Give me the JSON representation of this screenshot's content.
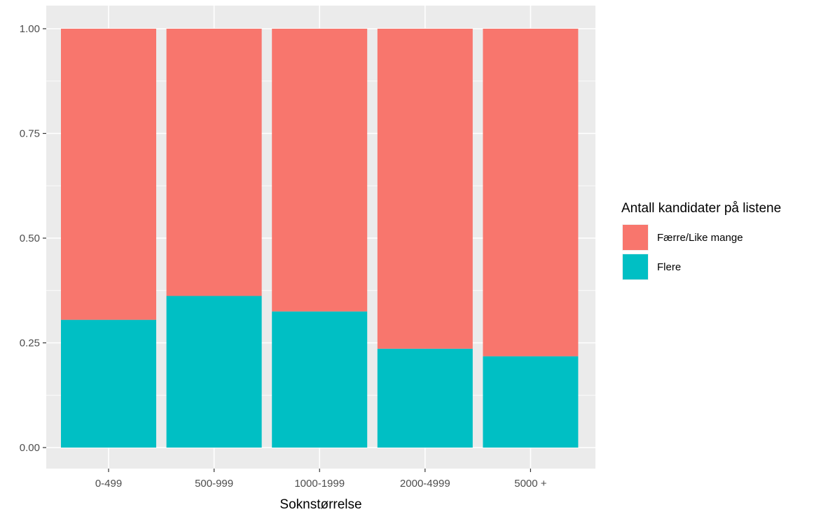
{
  "chart_data": {
    "type": "bar",
    "stacked": true,
    "title": "",
    "xlabel": "Sokn­størrelse",
    "ylabel": "",
    "categories": [
      "0-499",
      "500-999",
      "1000-1999",
      "2000-4999",
      "5000 +"
    ],
    "ylim": [
      0,
      1
    ],
    "yticks": [
      "0.00",
      "0.25",
      "0.50",
      "0.75",
      "1.00"
    ],
    "grid": true,
    "legend": {
      "title": "Antall kandidater på listene",
      "position": "right"
    },
    "series": [
      {
        "name": "Flere",
        "color": "#00BFC4",
        "values": [
          0.305,
          0.362,
          0.325,
          0.236,
          0.218
        ]
      },
      {
        "name": "Færre/Like mange",
        "color": "#F8766D",
        "values": [
          0.695,
          0.638,
          0.675,
          0.764,
          0.782
        ]
      }
    ],
    "legend_order": [
      "Færre/Like mange",
      "Flere"
    ],
    "panel_background": "#EBEBEB",
    "grid_color": "#FFFFFF"
  }
}
